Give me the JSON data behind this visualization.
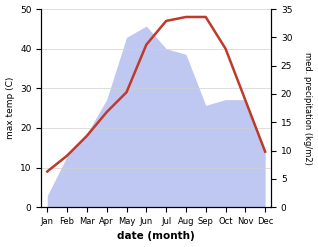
{
  "months": [
    "Jan",
    "Feb",
    "Mar",
    "Apr",
    "May",
    "Jun",
    "Jul",
    "Aug",
    "Sep",
    "Oct",
    "Nov",
    "Dec"
  ],
  "temp": [
    9,
    13,
    18,
    24,
    29,
    41,
    47,
    48,
    48,
    40,
    27,
    14
  ],
  "precip": [
    2,
    9,
    13,
    19,
    30,
    32,
    28,
    27,
    18,
    19,
    19,
    10
  ],
  "temp_color": "#c0392b",
  "precip_fill_color": "#bfc8f0",
  "temp_ylim": [
    0,
    50
  ],
  "precip_ylim": [
    0,
    35
  ],
  "xlabel": "date (month)",
  "ylabel_left": "max temp (C)",
  "ylabel_right": "med. precipitation (kg/m2)",
  "background_color": "#ffffff",
  "left_yticks": [
    0,
    10,
    20,
    30,
    40,
    50
  ],
  "right_yticks": [
    0,
    5,
    10,
    15,
    20,
    25,
    30,
    35
  ]
}
